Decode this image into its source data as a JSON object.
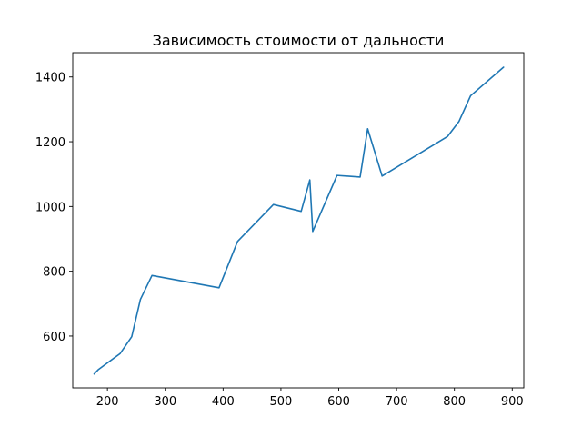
{
  "chart_data": {
    "type": "line",
    "title": "Зависимость стоимости от дальности",
    "xlabel": "",
    "ylabel": "",
    "xlim": [
      140,
      920
    ],
    "ylim": [
      440,
      1475
    ],
    "xticks": [
      200,
      300,
      400,
      500,
      600,
      700,
      800,
      900
    ],
    "yticks": [
      600,
      800,
      1000,
      1200,
      1400
    ],
    "grid": false,
    "series": [
      {
        "color": "#1f77b4",
        "x": [
          177,
          184,
          222,
          242,
          257,
          277,
          393,
          425,
          487,
          535,
          550,
          555,
          597,
          637,
          650,
          675,
          788,
          808,
          828,
          885
        ],
        "y": [
          483,
          496,
          546,
          598,
          713,
          787,
          749,
          892,
          1006,
          985,
          1082,
          923,
          1096,
          1091,
          1240,
          1094,
          1216,
          1263,
          1342,
          1430
        ]
      }
    ]
  }
}
